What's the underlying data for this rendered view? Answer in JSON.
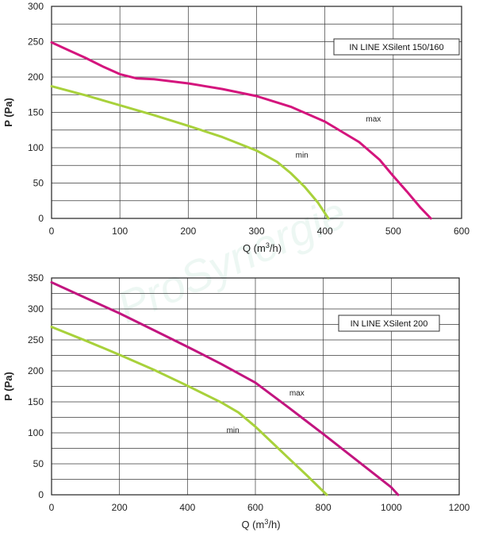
{
  "watermark": "ProSynergie",
  "chart_data": [
    {
      "type": "line",
      "title": "",
      "legend_box": "IN LINE XSilent 150/160",
      "xlabel_main": "Q (m",
      "xlabel_sup": "3",
      "xlabel_tail": "/h)",
      "ylabel": "P (Pa)",
      "xlim": [
        0,
        600
      ],
      "ylim": [
        0,
        300
      ],
      "xticks": [
        0,
        100,
        200,
        300,
        400,
        500,
        600
      ],
      "yticks": [
        0,
        50,
        100,
        150,
        200,
        250,
        300
      ],
      "xgrid": [
        0,
        100,
        200,
        300,
        400,
        500,
        600
      ],
      "ygrid": [
        0,
        25,
        50,
        75,
        100,
        125,
        150,
        175,
        200,
        225,
        250,
        275,
        300
      ],
      "series": [
        {
          "name": "max",
          "color": "#d4157d",
          "label_at": [
            460,
            137
          ],
          "x": [
            0,
            25,
            50,
            75,
            100,
            125,
            150,
            200,
            250,
            300,
            350,
            400,
            450,
            480,
            500,
            520,
            540,
            555
          ],
          "y": [
            249,
            238,
            227,
            215,
            204,
            198,
            197,
            191,
            183,
            173,
            158,
            137,
            108,
            83,
            60,
            38,
            15,
            0
          ]
        },
        {
          "name": "min",
          "color": "#a8d13b",
          "label_at": [
            357,
            86
          ],
          "x": [
            0,
            50,
            100,
            150,
            200,
            250,
            300,
            330,
            350,
            370,
            390,
            405
          ],
          "y": [
            187,
            174,
            160,
            146,
            131,
            115,
            96,
            80,
            64,
            45,
            22,
            0
          ]
        }
      ]
    },
    {
      "type": "line",
      "title": "",
      "legend_box": "IN LINE XSilent 200",
      "xlabel_main": "Q (m",
      "xlabel_sup": "3",
      "xlabel_tail": "/h)",
      "ylabel": "P (Pa)",
      "xlim": [
        0,
        1200
      ],
      "ylim": [
        0,
        350
      ],
      "xticks": [
        0,
        200,
        400,
        600,
        800,
        1000,
        1200
      ],
      "yticks": [
        0,
        50,
        100,
        150,
        200,
        250,
        300,
        350
      ],
      "xgrid": [
        0,
        200,
        400,
        600,
        800,
        1000,
        1200
      ],
      "ygrid": [
        0,
        25,
        50,
        75,
        100,
        125,
        150,
        175,
        200,
        225,
        250,
        275,
        300,
        325,
        350
      ],
      "series": [
        {
          "name": "max",
          "color": "#c2157f",
          "label_at": [
            700,
            160
          ],
          "x": [
            0,
            100,
            200,
            300,
            400,
            500,
            600,
            700,
            800,
            900,
            1000,
            1020
          ],
          "y": [
            343,
            318,
            293,
            266,
            239,
            211,
            181,
            140,
            98,
            55,
            12,
            0
          ]
        },
        {
          "name": "min",
          "color": "#a8d13b",
          "label_at": [
            515,
            100
          ],
          "x": [
            0,
            100,
            200,
            300,
            400,
            500,
            550,
            600,
            650,
            700,
            750,
            810
          ],
          "y": [
            271,
            249,
            226,
            202,
            176,
            149,
            133,
            110,
            84,
            58,
            32,
            0
          ]
        }
      ]
    }
  ]
}
